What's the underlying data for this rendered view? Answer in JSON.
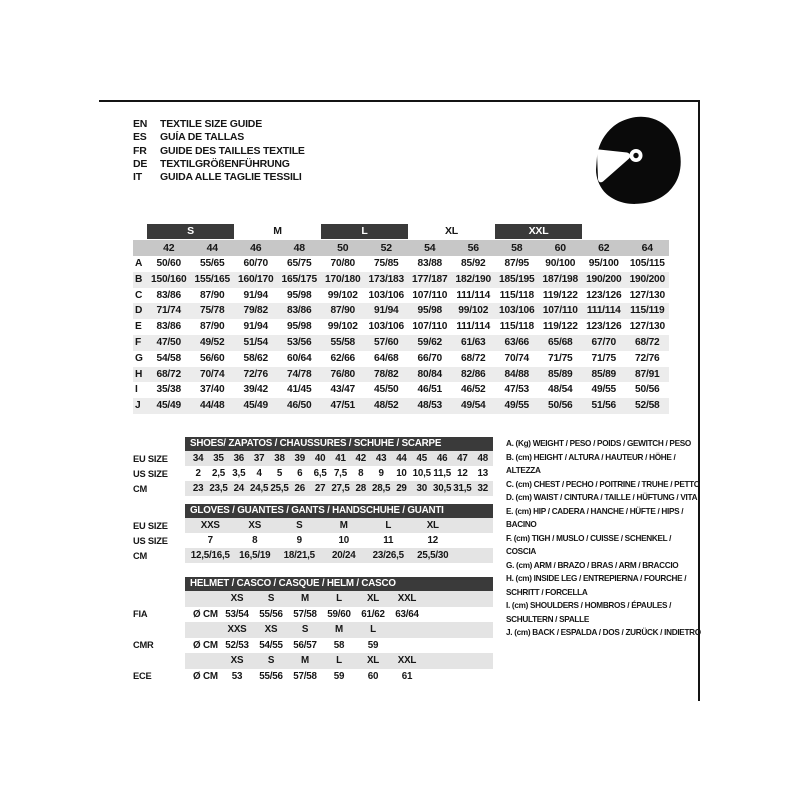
{
  "colors": {
    "bar_dark": "#3a3a3a",
    "column_band_gray": "#c7c7c7",
    "row_alt_gray": "#ececec",
    "small_row_gray": "#e4e4e4",
    "text": "#161616",
    "frame": "#141414"
  },
  "header": {
    "helmet_icon": "racing-helmet-icon",
    "languages": [
      {
        "code": "EN",
        "title": "TEXTILE SIZE GUIDE"
      },
      {
        "code": "ES",
        "title": "GUÍA DE TALLAS"
      },
      {
        "code": "FR",
        "title": "GUIDE DES TAILLES TEXTILE"
      },
      {
        "code": "DE",
        "title": "TEXTILGRÖßENFÜHRUNG"
      },
      {
        "code": "IT",
        "title": "GUIDA ALLE TAGLIE TESSILI"
      }
    ]
  },
  "size_table": {
    "groups": [
      {
        "label": "S",
        "dark": true
      },
      {
        "label": "M",
        "dark": false
      },
      {
        "label": "L",
        "dark": true
      },
      {
        "label": "XL",
        "dark": false
      },
      {
        "label": "XXL",
        "dark": true
      }
    ],
    "columns": [
      "42",
      "44",
      "46",
      "48",
      "50",
      "52",
      "54",
      "56",
      "58",
      "60",
      "62",
      "64"
    ],
    "rows": [
      {
        "letter": "A",
        "values": [
          "50/60",
          "55/65",
          "60/70",
          "65/75",
          "70/80",
          "75/85",
          "83/88",
          "85/92",
          "87/95",
          "90/100",
          "95/100",
          "105/115"
        ]
      },
      {
        "letter": "B",
        "values": [
          "150/160",
          "155/165",
          "160/170",
          "165/175",
          "170/180",
          "173/183",
          "177/187",
          "182/190",
          "185/195",
          "187/198",
          "190/200",
          "190/200"
        ]
      },
      {
        "letter": "C",
        "values": [
          "83/86",
          "87/90",
          "91/94",
          "95/98",
          "99/102",
          "103/106",
          "107/110",
          "111/114",
          "115/118",
          "119/122",
          "123/126",
          "127/130"
        ]
      },
      {
        "letter": "D",
        "values": [
          "71/74",
          "75/78",
          "79/82",
          "83/86",
          "87/90",
          "91/94",
          "95/98",
          "99/102",
          "103/106",
          "107/110",
          "111/114",
          "115/119"
        ]
      },
      {
        "letter": "E",
        "values": [
          "83/86",
          "87/90",
          "91/94",
          "95/98",
          "99/102",
          "103/106",
          "107/110",
          "111/114",
          "115/118",
          "119/122",
          "123/126",
          "127/130"
        ]
      },
      {
        "letter": "F",
        "values": [
          "47/50",
          "49/52",
          "51/54",
          "53/56",
          "55/58",
          "57/60",
          "59/62",
          "61/63",
          "63/66",
          "65/68",
          "67/70",
          "68/72"
        ]
      },
      {
        "letter": "G",
        "values": [
          "54/58",
          "56/60",
          "58/62",
          "60/64",
          "62/66",
          "64/68",
          "66/70",
          "68/72",
          "70/74",
          "71/75",
          "71/75",
          "72/76"
        ]
      },
      {
        "letter": "H",
        "values": [
          "68/72",
          "70/74",
          "72/76",
          "74/78",
          "76/80",
          "78/82",
          "80/84",
          "82/86",
          "84/88",
          "85/89",
          "85/89",
          "87/91"
        ]
      },
      {
        "letter": "I",
        "values": [
          "35/38",
          "37/40",
          "39/42",
          "41/45",
          "43/47",
          "45/50",
          "46/51",
          "46/52",
          "47/53",
          "48/54",
          "49/55",
          "50/56"
        ]
      },
      {
        "letter": "J",
        "values": [
          "45/49",
          "44/48",
          "45/49",
          "46/50",
          "47/51",
          "48/52",
          "48/53",
          "49/54",
          "49/55",
          "50/56",
          "51/56",
          "52/58"
        ]
      }
    ]
  },
  "shoes_table": {
    "title": "SHOES/ ZAPATOS / CHAUSSURES / SCHUHE / SCARPE",
    "rows": [
      {
        "label": "EU SIZE",
        "shaded": true,
        "values": [
          "34",
          "35",
          "36",
          "37",
          "38",
          "39",
          "40",
          "41",
          "42",
          "43",
          "44",
          "45",
          "46",
          "47",
          "48"
        ]
      },
      {
        "label": "US SIZE",
        "shaded": false,
        "values": [
          "2",
          "2,5",
          "3,5",
          "4",
          "5",
          "6",
          "6,5",
          "7,5",
          "8",
          "9",
          "10",
          "10,5",
          "11,5",
          "12",
          "13"
        ]
      },
      {
        "label": "CM",
        "shaded": true,
        "values": [
          "23",
          "23,5",
          "24",
          "24,5",
          "25,5",
          "26",
          "27",
          "27,5",
          "28",
          "28,5",
          "29",
          "30",
          "30,5",
          "31,5",
          "32"
        ]
      }
    ]
  },
  "gloves_table": {
    "title": "GLOVES / GUANTES / GANTS / HANDSCHUHE / GUANTI",
    "rows": [
      {
        "label": "EU SIZE",
        "shaded": true,
        "values": [
          "XXS",
          "XS",
          "S",
          "M",
          "L",
          "XL"
        ]
      },
      {
        "label": "US SIZE",
        "shaded": false,
        "values": [
          "7",
          "8",
          "9",
          "10",
          "11",
          "12"
        ]
      },
      {
        "label": "CM",
        "shaded": true,
        "values": [
          "12,5/16,5",
          "16,5/19",
          "18/21,5",
          "20/24",
          "23/26,5",
          "25,5/30"
        ]
      }
    ]
  },
  "helmet_table": {
    "title": "HELMET / CASCO / CASQUE / HELM / CASCO",
    "sections": [
      {
        "label": "FIA",
        "unit": "Ø CM",
        "sizes": [
          "XS",
          "S",
          "M",
          "L",
          "XL",
          "XXL"
        ],
        "values": [
          "53/54",
          "55/56",
          "57/58",
          "59/60",
          "61/62",
          "63/64"
        ]
      },
      {
        "label": "CMR",
        "unit": "Ø CM",
        "sizes": [
          "XXS",
          "XS",
          "S",
          "M",
          "L"
        ],
        "values": [
          "52/53",
          "54/55",
          "56/57",
          "58",
          "59"
        ]
      },
      {
        "label": "ECE",
        "unit": "Ø CM",
        "sizes": [
          "XS",
          "S",
          "M",
          "L",
          "XL",
          "XXL"
        ],
        "values": [
          "53",
          "55/56",
          "57/58",
          "59",
          "60",
          "61"
        ]
      }
    ]
  },
  "legend": {
    "items": [
      "A. (Kg) WEIGHT / PESO / POIDS / GEWITCH / PESO",
      "B. (cm) HEIGHT / ALTURA / HAUTEUR / HÖHE / ALTEZZA",
      "C. (cm) CHEST / PECHO / POITRINE / TRUHE / PETTO",
      "D. (cm) WAIST / CINTURA / TAILLE / HÜFTUNG / VITA",
      "E. (cm) HIP / CADERA / HANCHE / HÜFTE / HIPS /  BACINO",
      "F. (cm) TIGH / MUSLO / CUISSE / SCHENKEL / COSCIA",
      "G. (cm) ARM  / BRAZO / BRAS / ARM / BRACCIO",
      "H. (cm) INSIDE LEG / ENTREPIERNA / FOURCHE / SCHRITT / FORCELLA",
      "I.  (cm) SHOULDERS / HOMBROS / ÉPAULES / SCHULTERN / SPALLE",
      "J. (cm) BACK / ESPALDA / DOS / ZURÜCK / INDIETRO"
    ]
  }
}
